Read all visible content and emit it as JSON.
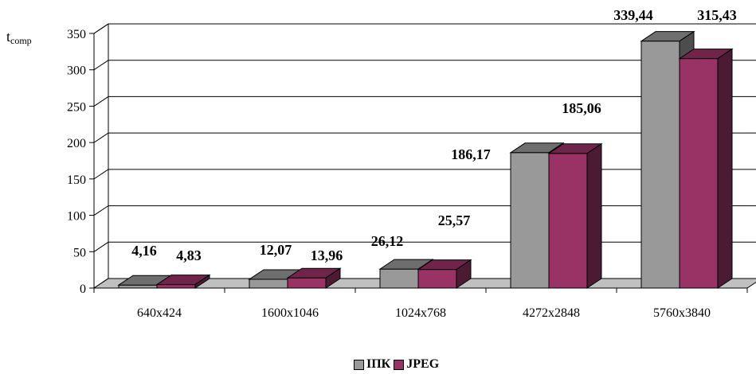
{
  "chart_data": {
    "type": "bar",
    "title": "",
    "ylabel_main": "t",
    "ylabel_sub": "comp",
    "xlabel": "",
    "categories": [
      "640x424",
      "1600x1046",
      "1024x768",
      "4272x2848",
      "5760x3840"
    ],
    "series": [
      {
        "name": "ІПК",
        "values": [
          4.16,
          12.07,
          26.12,
          186.17,
          339.44
        ],
        "labels": [
          "4,16",
          "12,07",
          "26,12",
          "186,17",
          "339,44"
        ],
        "color": "#999999"
      },
      {
        "name": "JPEG",
        "values": [
          4.83,
          13.96,
          25.57,
          185.06,
          315.43
        ],
        "labels": [
          "4,83",
          "13,96",
          "25,57",
          "185,06",
          "315,43"
        ],
        "color": "#993366"
      }
    ],
    "yticks": [
      "0",
      "50",
      "100",
      "150",
      "200",
      "250",
      "300",
      "350"
    ],
    "ylim": [
      0,
      350
    ],
    "grid": true,
    "legend_position": "bottom"
  }
}
